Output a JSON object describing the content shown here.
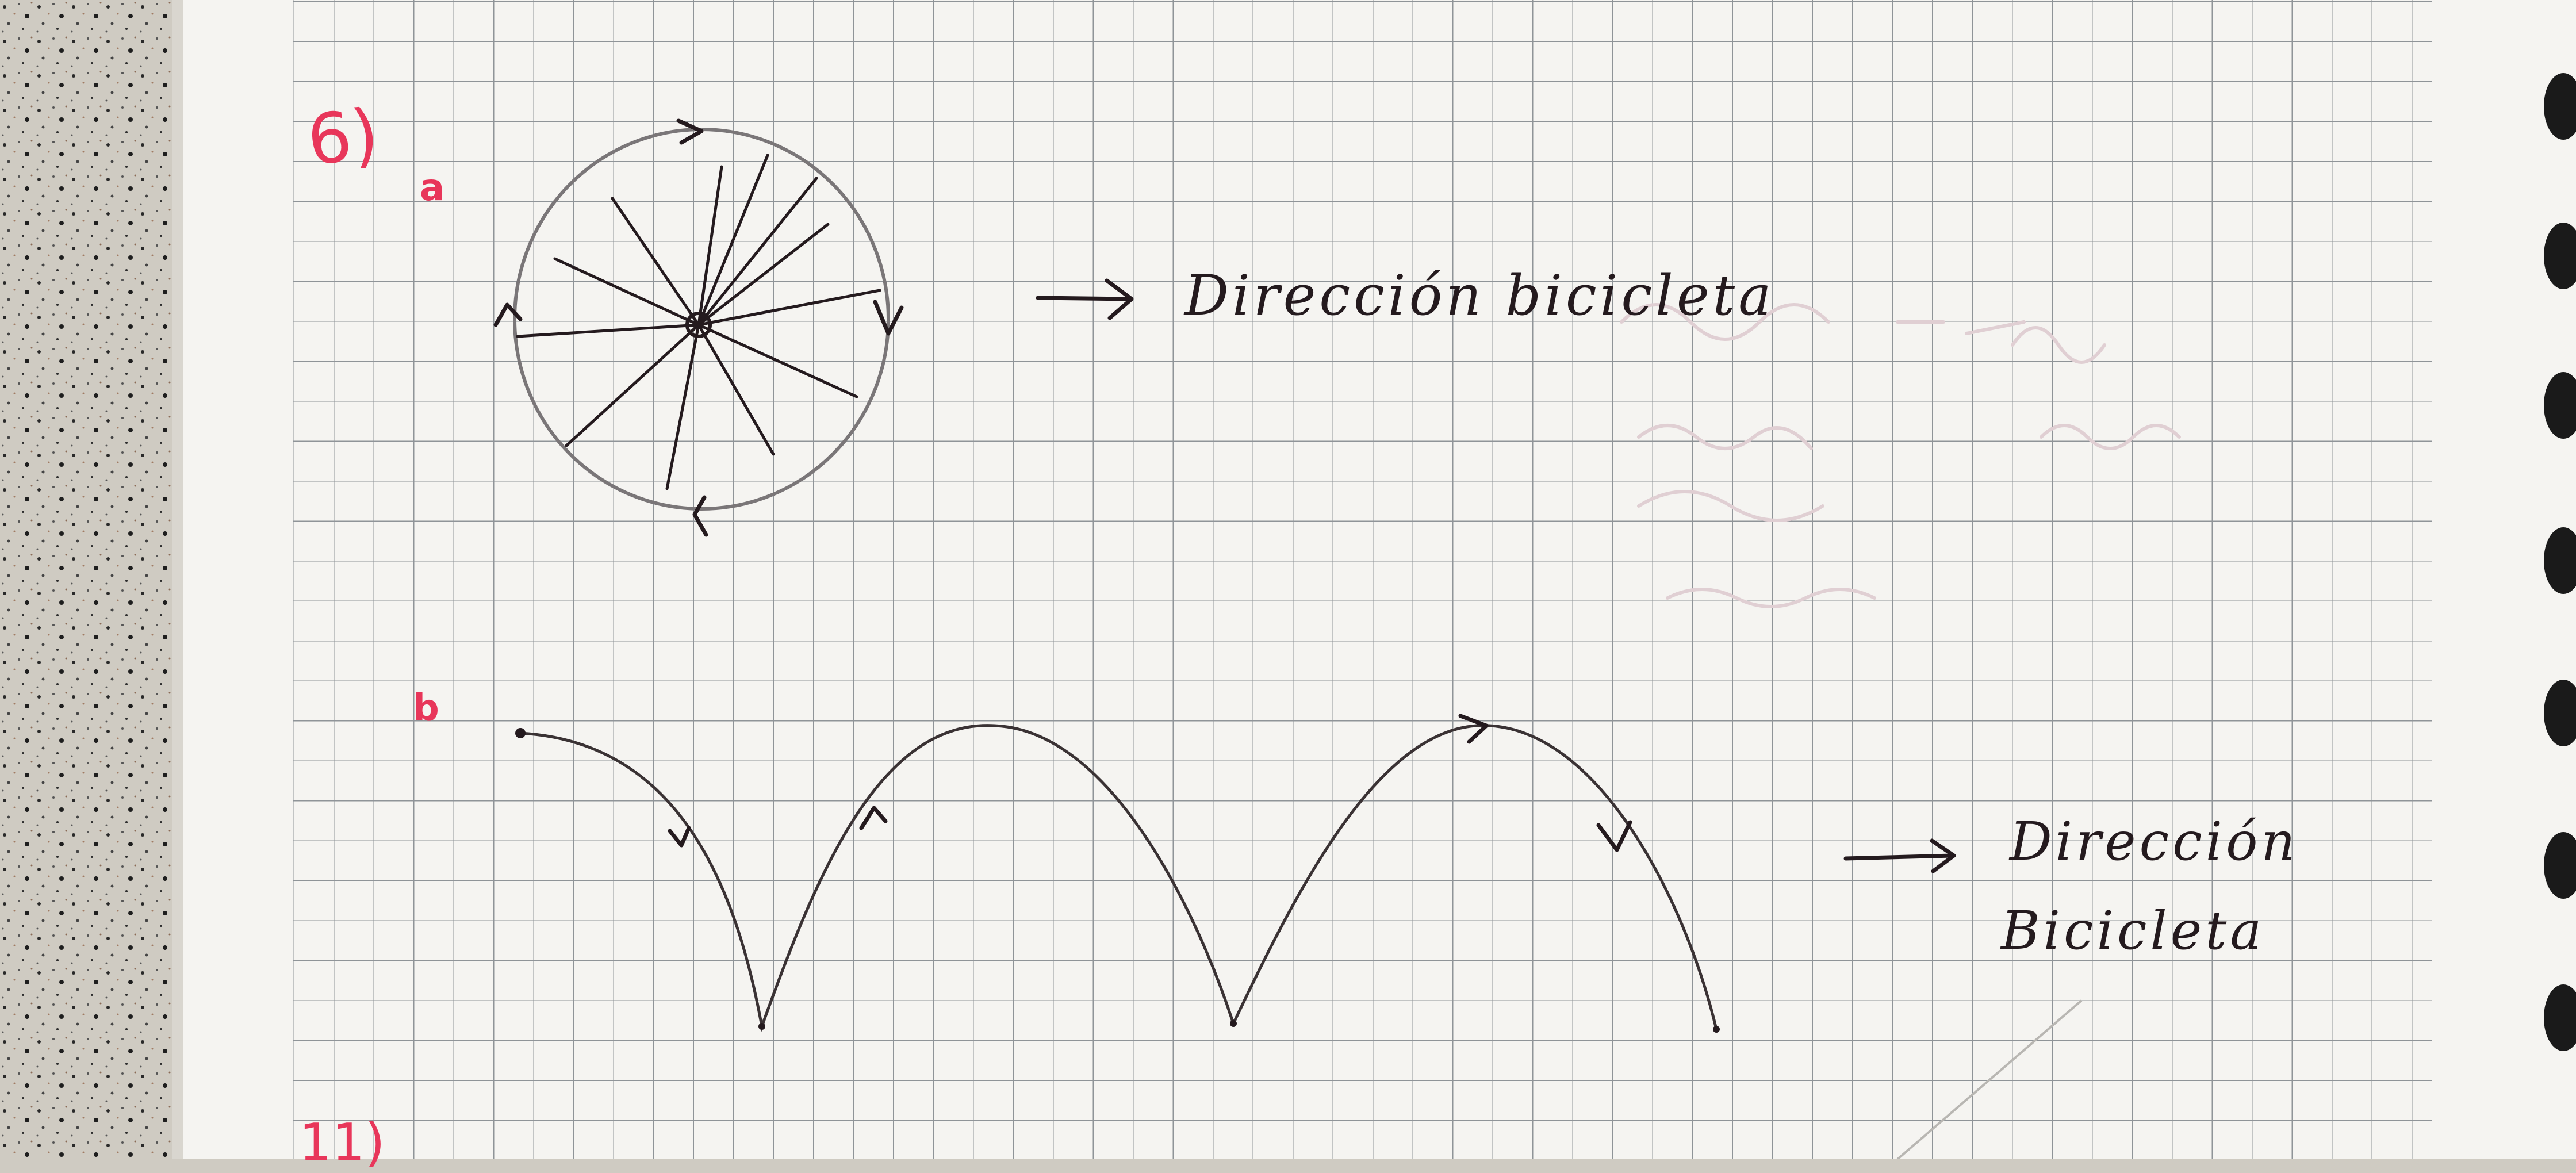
{
  "note": {
    "exercise_number": "6)",
    "next_exercise_number": "11)",
    "part_a_marker": "a",
    "part_b_marker": "b",
    "wheel_direction_label": "Dirección bicicleta",
    "curve_direction_label_line1": "Dirección",
    "curve_direction_label_line2": "Bicicleta"
  },
  "colors": {
    "ink": "#241a1e",
    "pencil": "#6e6a6c",
    "red_ink": "#e8365a",
    "grid": "#8f9498",
    "paper": "#f5f4f1",
    "counter": "#cfcbc2"
  }
}
